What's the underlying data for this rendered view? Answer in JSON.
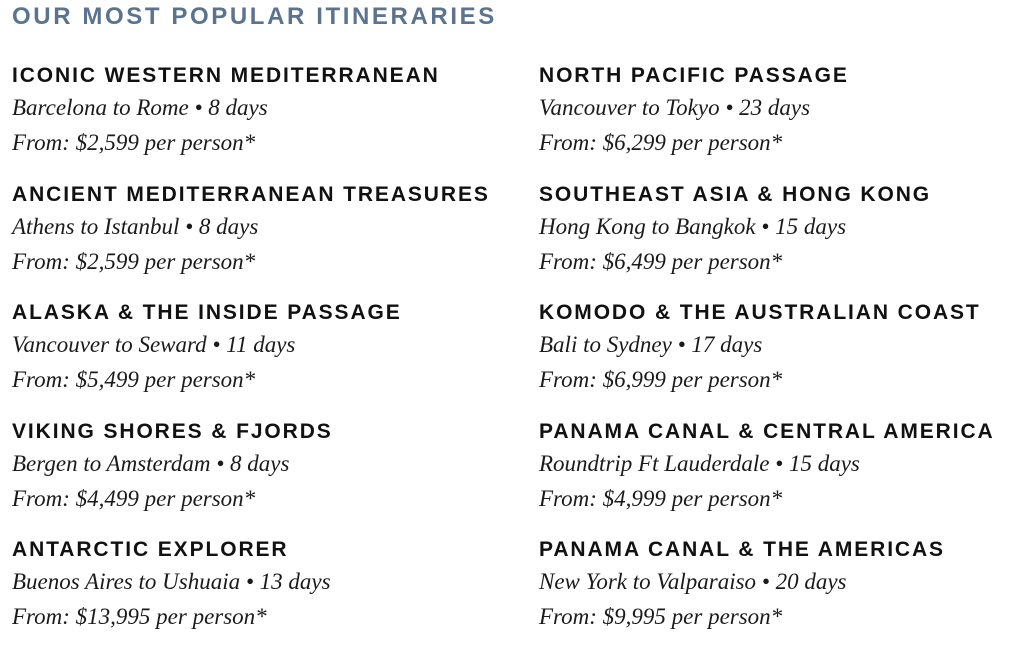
{
  "title": "OUR MOST POPULAR ITINERARIES",
  "columns": [
    [
      {
        "name": "ICONIC WESTERN MEDITERRANEAN",
        "route": "Barcelona to Rome • 8 days",
        "price": "From: $2,599 per person*"
      },
      {
        "name": "ANCIENT MEDITERRANEAN TREASURES",
        "route": "Athens to Istanbul • 8 days",
        "price": "From: $2,599 per person*"
      },
      {
        "name": "ALASKA & THE INSIDE PASSAGE",
        "route": "Vancouver to Seward • 11 days",
        "price": "From: $5,499 per person*"
      },
      {
        "name": "VIKING SHORES & FJORDS",
        "route": "Bergen to Amsterdam • 8 days",
        "price": "From: $4,499 per person*"
      },
      {
        "name": "ANTARCTIC EXPLORER",
        "route": "Buenos Aires to Ushuaia • 13 days",
        "price": "From: $13,995 per person*"
      }
    ],
    [
      {
        "name": "NORTH PACIFIC PASSAGE",
        "route": "Vancouver to Tokyo • 23 days",
        "price": "From: $6,299 per person*"
      },
      {
        "name": "SOUTHEAST ASIA & HONG KONG",
        "route": "Hong Kong to Bangkok • 15 days",
        "price": "From: $6,499 per person*"
      },
      {
        "name": "KOMODO & THE AUSTRALIAN COAST",
        "route": "Bali to Sydney • 17 days",
        "price": "From: $6,999 per person*"
      },
      {
        "name": "PANAMA CANAL & CENTRAL AMERICA",
        "route": "Roundtrip Ft Lauderdale • 15 days",
        "price": "From: $4,999 per person*"
      },
      {
        "name": "PANAMA CANAL & THE AMERICAS",
        "route": "New York to Valparaiso • 20 days",
        "price": "From: $9,995 per person*"
      }
    ]
  ],
  "colors": {
    "title": "#5a7391",
    "text": "#111111"
  }
}
